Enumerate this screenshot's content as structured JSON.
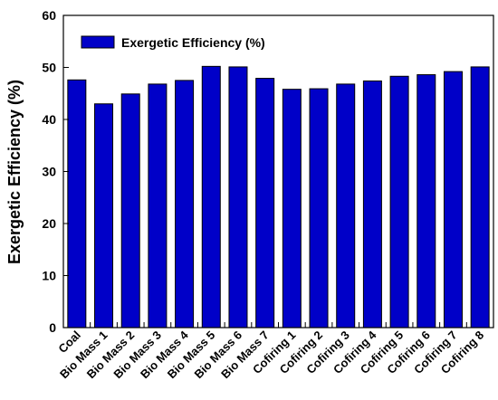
{
  "chart_data": {
    "type": "bar",
    "categories": [
      "Coal",
      "Bio Mass 1",
      "Bio Mass 2",
      "Bio Mass 3",
      "Bio Mass 4",
      "Bio Mass 5",
      "Bio Mass 6",
      "Bio Mass 7",
      "Cofiring 1",
      "Cofiring 2",
      "Cofiring 3",
      "Cofiring 4",
      "Cofiring 5",
      "Cofiring 6",
      "Cofiring 7",
      "Cofiring 8"
    ],
    "series": [
      {
        "name": "Exergetic Efficiency (%)",
        "values": [
          47.6,
          43.0,
          44.9,
          46.8,
          47.5,
          50.2,
          50.1,
          47.9,
          45.8,
          45.9,
          46.8,
          47.4,
          48.3,
          48.6,
          49.2,
          50.1
        ],
        "color": "#0000c8"
      }
    ],
    "xlabel": "",
    "ylabel": "Exergetic Efficiency (%)",
    "ylim": [
      0,
      60
    ],
    "yticks": [
      "0",
      "10",
      "20",
      "30",
      "40",
      "50",
      "60"
    ],
    "grid": false,
    "legend": "top-left"
  }
}
